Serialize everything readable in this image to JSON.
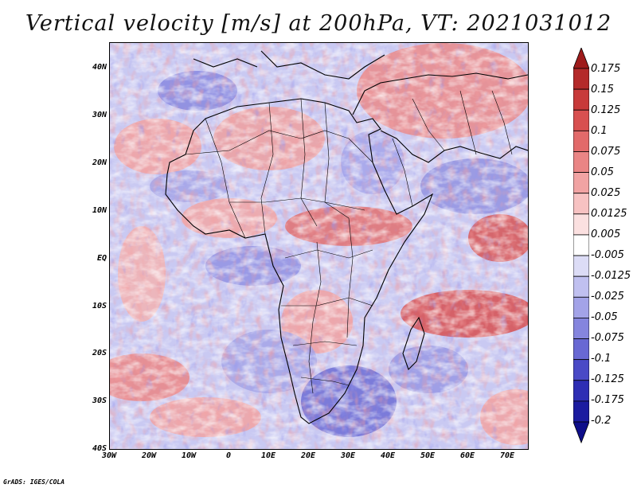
{
  "title": "Vertical velocity [m/s] at 200hPa, VT: 2021031012",
  "credit": "GrADS: IGES/COLA",
  "map": {
    "region": "Africa and surrounding oceans",
    "lat_labels": [
      "40N",
      "30N",
      "20N",
      "10N",
      "EQ",
      "10S",
      "20S",
      "30S",
      "40S"
    ],
    "lon_labels": [
      "30W",
      "20W",
      "10W",
      "0",
      "10E",
      "20E",
      "30E",
      "40E",
      "50E",
      "60E",
      "70E"
    ],
    "lat_range": [
      -40,
      45
    ],
    "lon_range": [
      -30,
      75
    ]
  },
  "colorbar": {
    "labels": [
      "0.175",
      "0.15",
      "0.125",
      "0.1",
      "0.075",
      "0.05",
      "0.025",
      "0.0125",
      "0.005",
      "-0.005",
      "-0.0125",
      "-0.025",
      "-0.05",
      "-0.075",
      "-0.1",
      "-0.125",
      "-0.175",
      "-0.2"
    ],
    "colors": [
      "#9e1b1b",
      "#b42a2a",
      "#c83a3a",
      "#d85050",
      "#e26a6a",
      "#ea8585",
      "#f1a3a3",
      "#f7c2c2",
      "#fbe0e0",
      "#ffffff",
      "#dcdcf6",
      "#c0c0f0",
      "#a3a3e8",
      "#8585de",
      "#6868d3",
      "#4a4ac6",
      "#2e2eb4",
      "#1c1ca0",
      "#0e0e8a"
    ]
  }
}
